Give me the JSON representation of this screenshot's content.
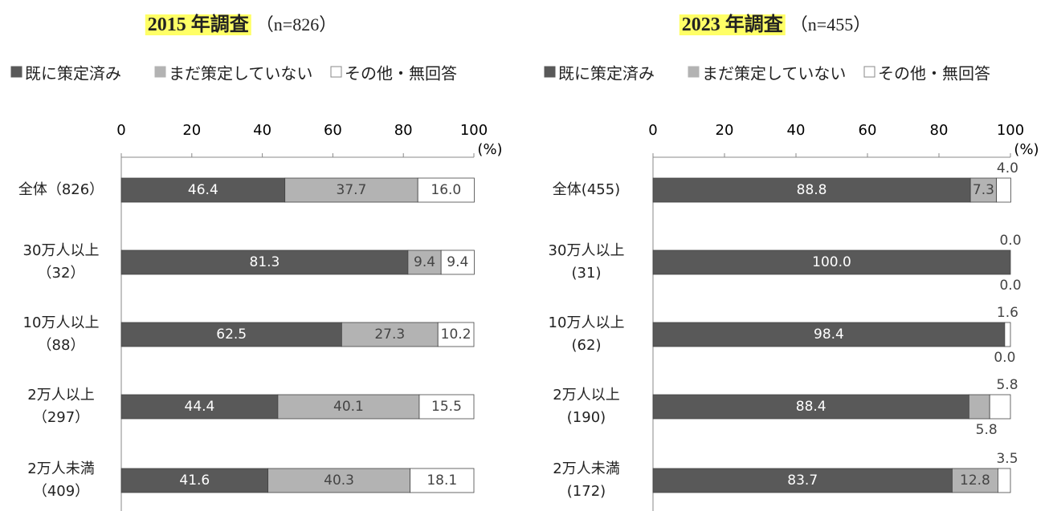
{
  "chart_data": [
    {
      "type": "stacked_barh",
      "title": "2015 年調査",
      "subtitle": "（n=826）",
      "xlabel": "(%)",
      "categories": [
        "全体（826）",
        "30万人以上\n（32）",
        "10万人以上\n（88）",
        "2万人以上\n（297）",
        "2万人未満\n（409）"
      ],
      "xlim": [
        0,
        100
      ],
      "xticks": [
        0,
        20,
        40,
        60,
        80,
        100
      ],
      "legend": "top",
      "series": [
        {
          "name": "既に策定済み",
          "color": "#595959",
          "values": [
            46.4,
            81.3,
            62.5,
            44.4,
            41.6
          ],
          "value_labels": [
            "46.4",
            "81.3",
            "62.5",
            "44.4",
            "41.6"
          ]
        },
        {
          "name": "まだ策定していない",
          "color": "#b3b3b3",
          "values": [
            37.7,
            9.4,
            27.3,
            40.1,
            40.3
          ],
          "value_labels": [
            "37.7",
            "9.4",
            "27.3",
            "40.1",
            "40.3"
          ]
        },
        {
          "name": "その他・無回答",
          "color": "#ffffff",
          "values": [
            16.0,
            9.4,
            10.2,
            15.5,
            18.1
          ],
          "value_labels": [
            "16.0",
            "9.4",
            "10.2",
            "15.5",
            "18.1"
          ]
        }
      ]
    },
    {
      "type": "stacked_barh",
      "title": "2023 年調査",
      "subtitle": "（n=455）",
      "xlabel": "(%)",
      "categories": [
        "全体(455)",
        "30万人以上\n(31)",
        "10万人以上\n(62)",
        "2万人以上\n(190)",
        "2万人未満\n(172)"
      ],
      "xlim": [
        0,
        100
      ],
      "xticks": [
        0,
        20,
        40,
        60,
        80,
        100
      ],
      "legend": "top",
      "series": [
        {
          "name": "既に策定済み",
          "color": "#595959",
          "values": [
            88.8,
            100.0,
            98.4,
            88.4,
            83.7
          ],
          "value_labels": [
            "88.8",
            "100.0",
            "98.4",
            "88.4",
            "83.7"
          ]
        },
        {
          "name": "まだ策定していない",
          "color": "#b3b3b3",
          "values": [
            7.3,
            0.0,
            0.0,
            5.8,
            12.8
          ],
          "value_labels": [
            "7.3",
            "0.0",
            "0.0",
            "5.8",
            "12.8"
          ]
        },
        {
          "name": "その他・無回答",
          "color": "#ffffff",
          "values": [
            4.0,
            0.0,
            1.6,
            5.8,
            3.5
          ],
          "value_labels": [
            "4.0",
            "0.0",
            "1.6",
            "5.8",
            "3.5"
          ]
        }
      ]
    }
  ]
}
